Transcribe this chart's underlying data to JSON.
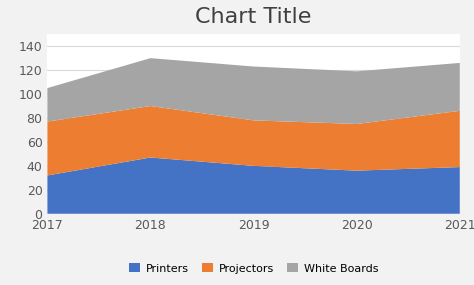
{
  "title": "Chart Title",
  "x": [
    2017,
    2018,
    2019,
    2020,
    2021
  ],
  "printers": [
    32,
    47,
    40,
    36,
    39
  ],
  "projectors": [
    45,
    43,
    38,
    39,
    47
  ],
  "whiteboards": [
    28,
    40,
    45,
    44,
    40
  ],
  "colors": {
    "printers": "#4472c4",
    "projectors": "#ed7d31",
    "whiteboards": "#a5a5a5"
  },
  "legend_labels": [
    "Printers",
    "Projectors",
    "White Boards"
  ],
  "xlim": [
    2017,
    2021
  ],
  "ylim": [
    0,
    150
  ],
  "yticks": [
    0,
    20,
    40,
    60,
    80,
    100,
    120,
    140
  ],
  "xticks": [
    2017,
    2018,
    2019,
    2020,
    2021
  ],
  "title_fontsize": 16,
  "tick_fontsize": 9,
  "background_color": "#f2f2f2",
  "plot_bg_color": "#ffffff"
}
